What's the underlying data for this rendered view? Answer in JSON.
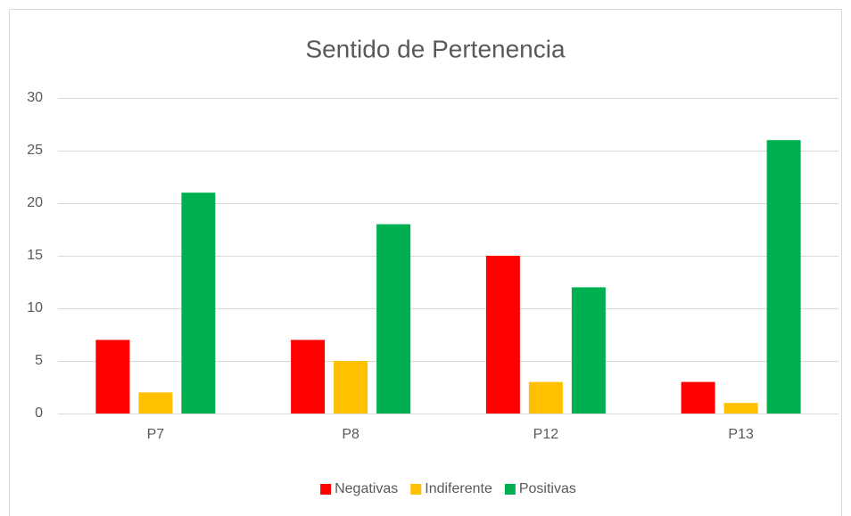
{
  "chart_data": {
    "type": "bar",
    "title": "Sentido de Pertenencia",
    "categories": [
      "P7",
      "P8",
      "P12",
      "P13"
    ],
    "series": [
      {
        "name": "Negativas",
        "color": "#ff0000",
        "values": [
          7,
          7,
          15,
          3
        ]
      },
      {
        "name": "Indiferente",
        "color": "#ffc000",
        "values": [
          2,
          5,
          3,
          1
        ]
      },
      {
        "name": "Positivas",
        "color": "#00b050",
        "values": [
          21,
          18,
          12,
          26
        ]
      }
    ],
    "ylim": [
      0,
      30
    ],
    "yticks": [
      0,
      5,
      10,
      15,
      20,
      25,
      30
    ],
    "grid": true,
    "legend": "bottom"
  }
}
